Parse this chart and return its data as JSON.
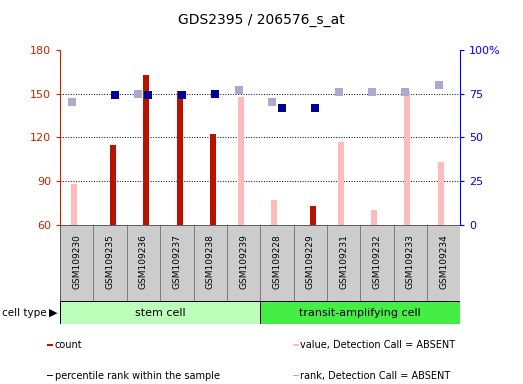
{
  "title": "GDS2395 / 206576_s_at",
  "samples": [
    "GSM109230",
    "GSM109235",
    "GSM109236",
    "GSM109237",
    "GSM109238",
    "GSM109239",
    "GSM109228",
    "GSM109229",
    "GSM109231",
    "GSM109232",
    "GSM109233",
    "GSM109234"
  ],
  "ylim": [
    60,
    180
  ],
  "yticks": [
    60,
    90,
    120,
    150,
    180
  ],
  "y2lim": [
    0,
    100
  ],
  "y2ticks": [
    0,
    25,
    50,
    75,
    100
  ],
  "y2ticklabels": [
    "0",
    "25",
    "50",
    "75",
    "100%"
  ],
  "red_bars": [
    null,
    115,
    163,
    152,
    122,
    null,
    null,
    73,
    null,
    null,
    null,
    null
  ],
  "pink_bars": [
    88,
    null,
    null,
    null,
    null,
    148,
    77,
    null,
    117,
    70,
    152,
    103
  ],
  "blue_squares_y": [
    null,
    74,
    74,
    74,
    75,
    null,
    67,
    67,
    null,
    null,
    null,
    null
  ],
  "lightblue_squares_y": [
    70,
    null,
    75,
    null,
    null,
    77,
    70,
    null,
    76,
    76,
    76,
    80
  ],
  "stem_cell_color": "#bbffbb",
  "transit_cell_color": "#44ee44",
  "bg_gray": "#cccccc",
  "red_color": "#bb1100",
  "pink_color": "#ffbbbb",
  "blue_color": "#000099",
  "lightblue_color": "#aaaacc",
  "bar_bottom": 60,
  "legend_items_left": [
    "count",
    "percentile rank within the sample"
  ],
  "legend_items_right": [
    "value, Detection Call = ABSENT",
    "rank, Detection Call = ABSENT"
  ],
  "legend_colors_left": [
    "#bb1100",
    "#000099"
  ],
  "legend_colors_right": [
    "#ffbbbb",
    "#aaaacc"
  ]
}
